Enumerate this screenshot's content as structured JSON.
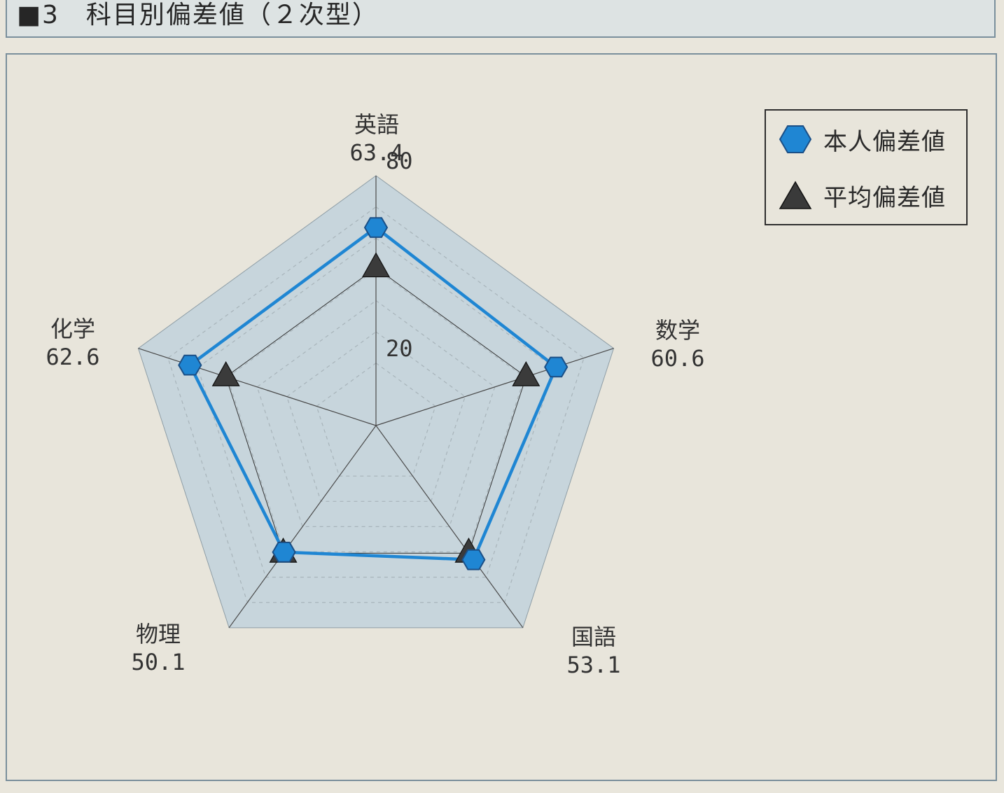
{
  "header": {
    "title": "■3　科目別偏差値（２次型）"
  },
  "chart_data": {
    "type": "radar",
    "axes": [
      "英語",
      "数学",
      "国語",
      "物理",
      "化学"
    ],
    "axis_value_labels": [
      "63.4",
      "60.6",
      "53.1",
      "50.1",
      "62.6"
    ],
    "scale": {
      "min": 20,
      "max": 80,
      "tick_labels": [
        "20",
        "80"
      ]
    },
    "series": [
      {
        "name": "本人偏差値",
        "values": [
          63.4,
          60.6,
          53.1,
          50.1,
          62.6
        ],
        "color": "#1f86d3",
        "marker": "hexagon"
      },
      {
        "name": "平均偏差値",
        "values": [
          50.5,
          50.5,
          50.5,
          50.5,
          50.5
        ],
        "color": "#333333",
        "marker": "triangle"
      }
    ],
    "legend_position": "top-right",
    "grid": true
  }
}
